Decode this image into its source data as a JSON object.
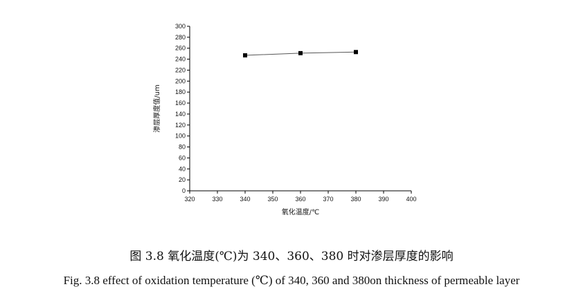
{
  "chart_data": {
    "type": "line",
    "x": [
      340,
      360,
      380
    ],
    "series": [
      {
        "values": [
          247,
          251,
          253
        ]
      }
    ],
    "xlabel": "氧化温度/℃",
    "ylabel": "渗层厚度值/um",
    "xlim": [
      320,
      400
    ],
    "ylim": [
      0,
      300
    ],
    "xticks": [
      320,
      330,
      340,
      350,
      360,
      370,
      380,
      390,
      400
    ],
    "yticks": [
      0,
      20,
      40,
      60,
      80,
      100,
      120,
      140,
      160,
      180,
      200,
      220,
      240,
      260,
      280,
      300
    ],
    "marker": "square",
    "grid": false,
    "line_color": "#555555",
    "marker_color": "#000000"
  },
  "captions": {
    "cn": "图 3.8  氧化温度(℃)为 340、360、380 时对渗层厚度的影响",
    "en": "Fig. 3.8 effect of oxidation temperature (℃) of 340, 360 and 380on thickness of permeable layer"
  }
}
